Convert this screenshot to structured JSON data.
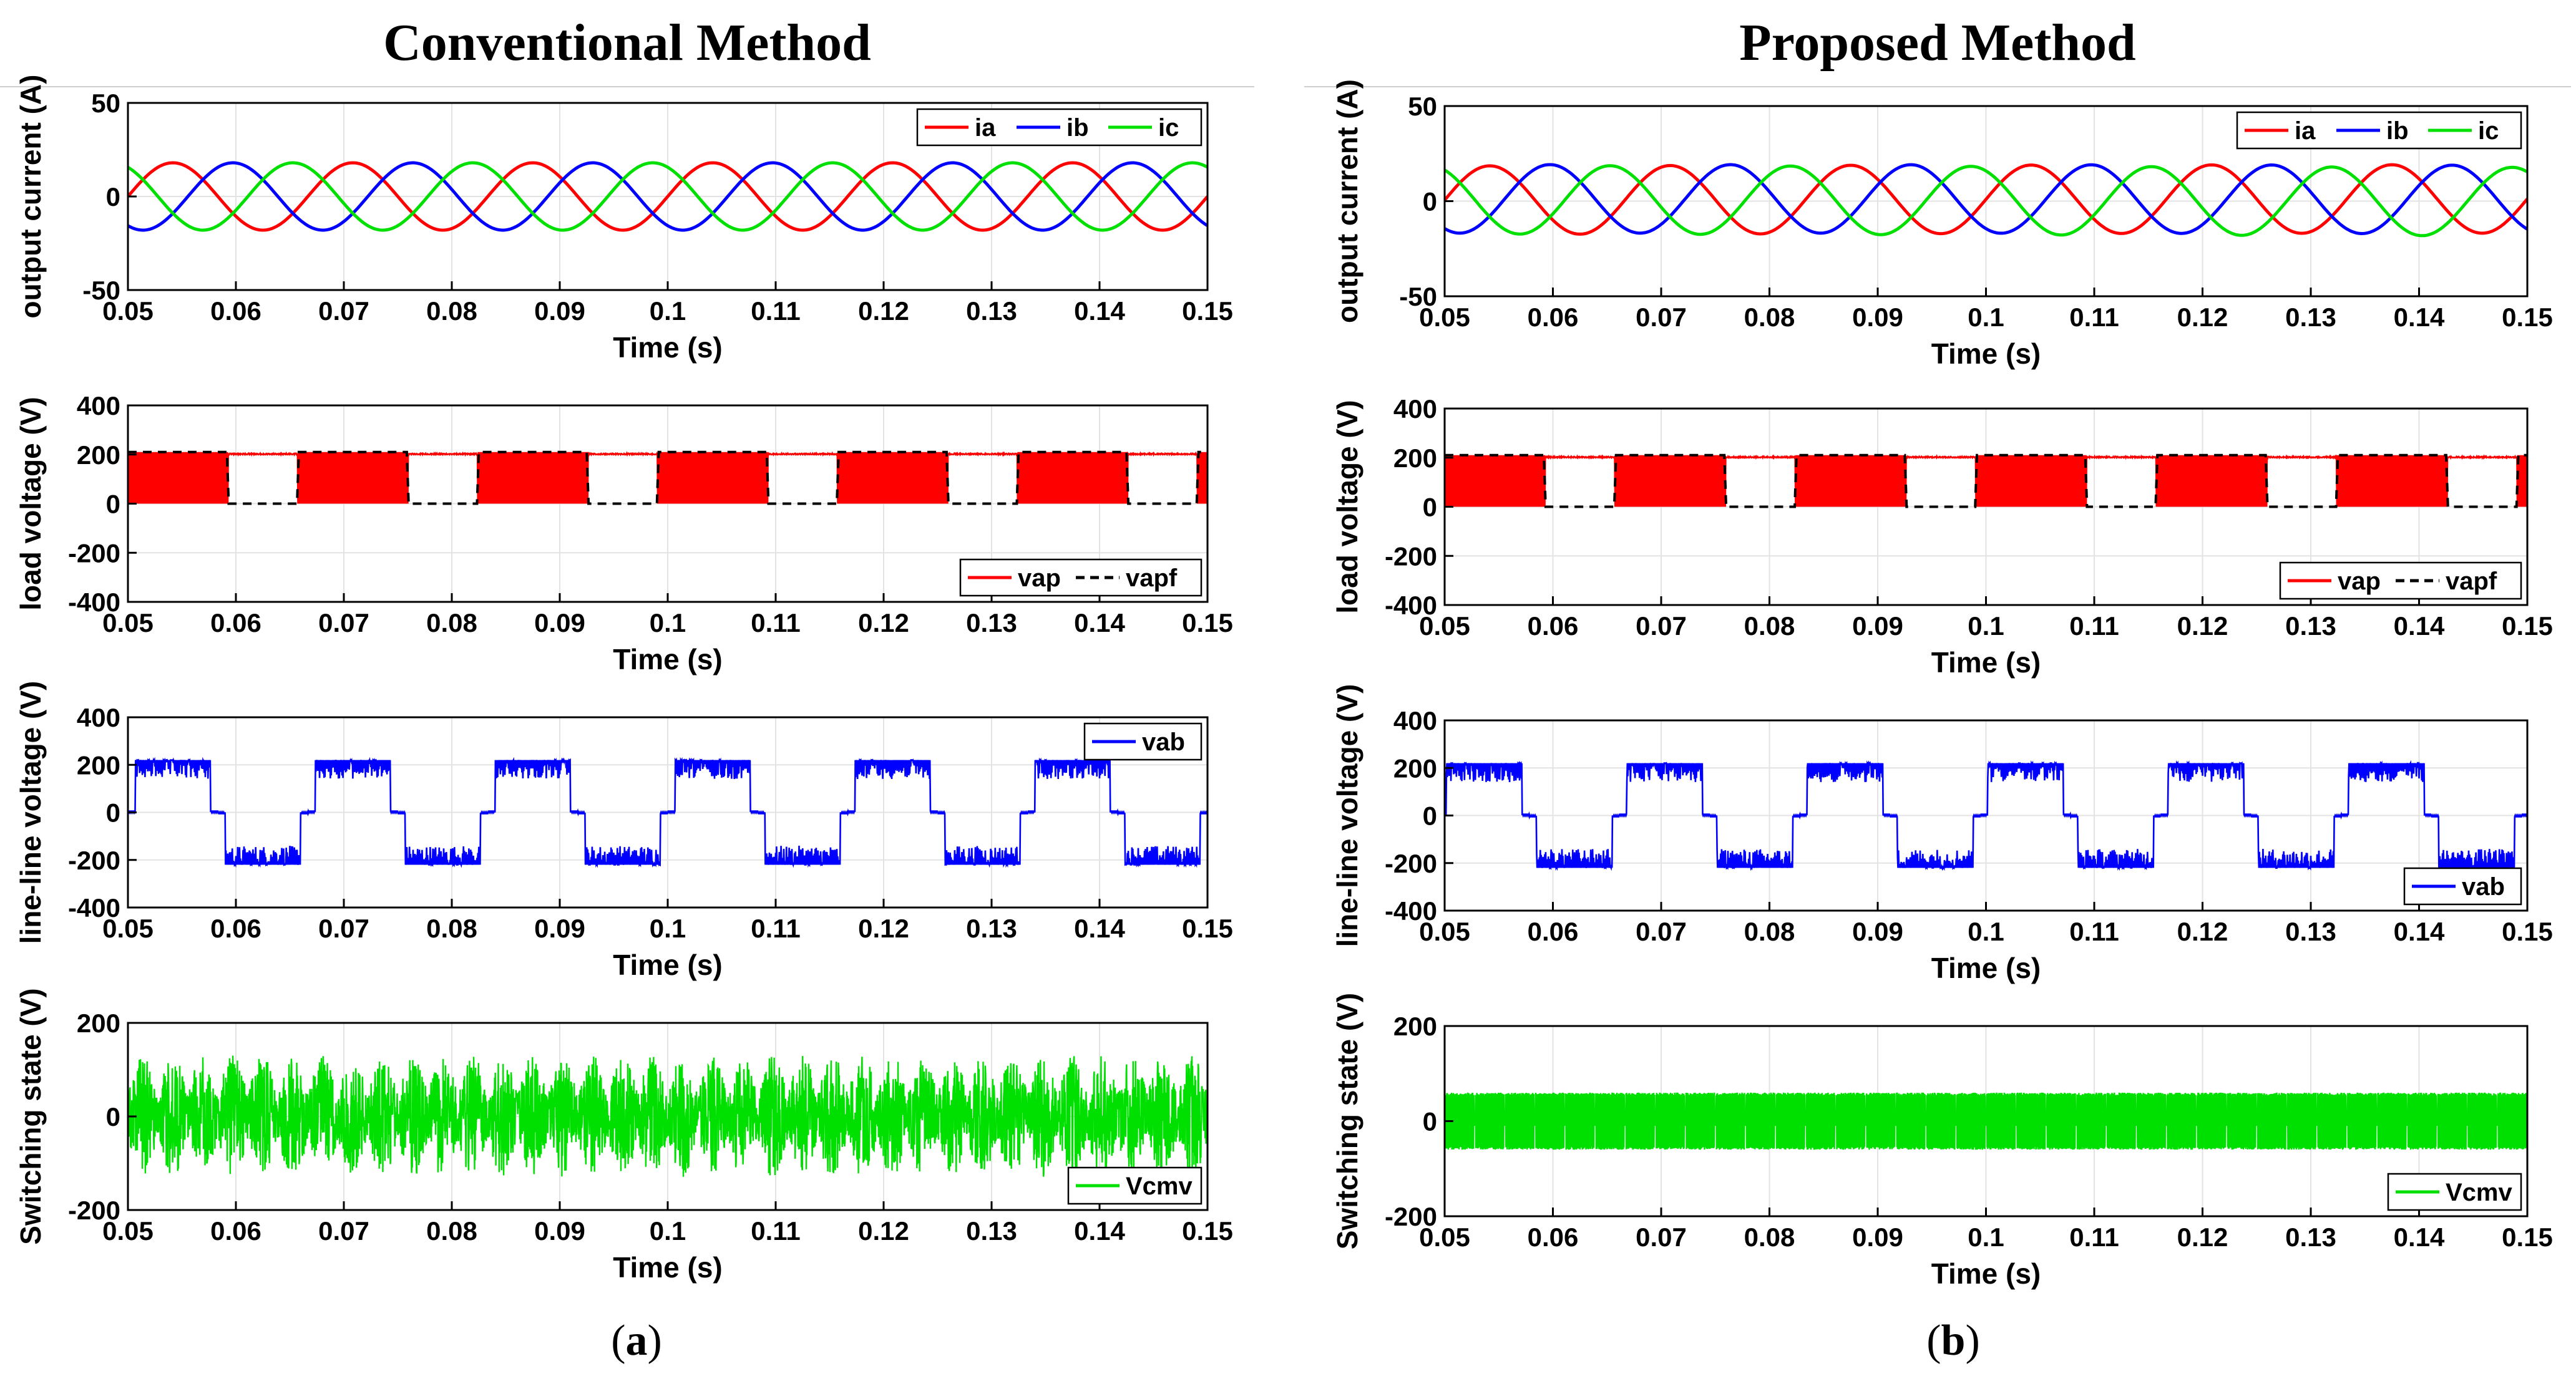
{
  "columns": [
    {
      "title": "Conventional Method",
      "caption_letter": "a"
    },
    {
      "title": "Proposed Method",
      "caption_letter": "b"
    }
  ],
  "chart_data": [
    {
      "id": "a1",
      "panel": "a",
      "type": "line",
      "ylabel": "output current (A)",
      "xlabel": "Time (s)",
      "xlim": [
        0.05,
        0.15
      ],
      "ylim": [
        -50,
        50
      ],
      "yticks": [
        "50",
        "0",
        "-50"
      ],
      "xticks": [
        "0.05",
        "0.06",
        "0.07",
        "0.08",
        "0.09",
        "0.1",
        "0.11",
        "0.12",
        "0.13",
        "0.14",
        "0.15"
      ],
      "legend": "top-right",
      "amplitude": 18,
      "frequency_hz": 60,
      "series": [
        {
          "name": "ia",
          "color": "#ff0000",
          "phase_deg": 0
        },
        {
          "name": "ib",
          "color": "#0000ff",
          "phase_deg": -120
        },
        {
          "name": "ic",
          "color": "#00e000",
          "phase_deg": 120
        }
      ]
    },
    {
      "id": "a2",
      "panel": "a",
      "type": "line",
      "ylabel": "load voltage (V)",
      "xlabel": "Time (s)",
      "xlim": [
        0.05,
        0.15
      ],
      "ylim": [
        -400,
        400
      ],
      "yticks": [
        "400",
        "200",
        "0",
        "-200",
        "-400"
      ],
      "xticks": [
        "0.05",
        "0.06",
        "0.07",
        "0.08",
        "0.09",
        "0.1",
        "0.11",
        "0.12",
        "0.13",
        "0.14",
        "0.15"
      ],
      "legend": "bottom-right",
      "dc_level": 200,
      "series": [
        {
          "name": "vap",
          "color": "#ff0000",
          "style": "pwm"
        },
        {
          "name": "vapf",
          "color": "#000000",
          "style": "dashed"
        }
      ]
    },
    {
      "id": "a3",
      "panel": "a",
      "type": "line",
      "ylabel": "line-line voltage (V)",
      "xlabel": "Time (s)",
      "xlim": [
        0.05,
        0.15
      ],
      "ylim": [
        -400,
        400
      ],
      "yticks": [
        "400",
        "200",
        "0",
        "-200",
        "-400"
      ],
      "xticks": [
        "0.05",
        "0.06",
        "0.07",
        "0.08",
        "0.09",
        "0.1",
        "0.11",
        "0.12",
        "0.13",
        "0.14",
        "0.15"
      ],
      "legend": "top-right",
      "level": 220,
      "series": [
        {
          "name": "vab",
          "color": "#0000ff",
          "style": "pwm-bipolar"
        }
      ]
    },
    {
      "id": "a4",
      "panel": "a",
      "type": "line",
      "ylabel": "Switching state (V)",
      "xlabel": "Time (s)",
      "xlim": [
        0.05,
        0.15
      ],
      "ylim": [
        -200,
        200
      ],
      "yticks": [
        "200",
        "0",
        "-200"
      ],
      "xticks": [
        "0.05",
        "0.06",
        "0.07",
        "0.08",
        "0.09",
        "0.1",
        "0.11",
        "0.12",
        "0.13",
        "0.14",
        "0.15"
      ],
      "legend": "bottom-right",
      "peak": 130,
      "series": [
        {
          "name": "Vcmv",
          "color": "#00e000",
          "style": "noise"
        }
      ]
    },
    {
      "id": "b1",
      "panel": "b",
      "type": "line",
      "ylabel": "output current (A)",
      "xlabel": "Time (s)",
      "xlim": [
        0.05,
        0.15
      ],
      "ylim": [
        -50,
        50
      ],
      "yticks": [
        "50",
        "0",
        "-50"
      ],
      "xticks": [
        "0.05",
        "0.06",
        "0.07",
        "0.08",
        "0.09",
        "0.1",
        "0.11",
        "0.12",
        "0.13",
        "0.14",
        "0.15"
      ],
      "legend": "top-right",
      "amplitude": 18,
      "frequency_hz": 60,
      "series": [
        {
          "name": "ia",
          "color": "#ff0000",
          "phase_deg": 0
        },
        {
          "name": "ib",
          "color": "#0000ff",
          "phase_deg": -120
        },
        {
          "name": "ic",
          "color": "#00e000",
          "phase_deg": 120
        }
      ]
    },
    {
      "id": "b2",
      "panel": "b",
      "type": "line",
      "ylabel": "load voltage (V)",
      "xlabel": "Time (s)",
      "xlim": [
        0.05,
        0.15
      ],
      "ylim": [
        -400,
        400
      ],
      "yticks": [
        "400",
        "200",
        "0",
        "-200",
        "-400"
      ],
      "xticks": [
        "0.05",
        "0.06",
        "0.07",
        "0.08",
        "0.09",
        "0.1",
        "0.11",
        "0.12",
        "0.13",
        "0.14",
        "0.15"
      ],
      "legend": "bottom-right",
      "dc_level": 200,
      "series": [
        {
          "name": "vap",
          "color": "#ff0000",
          "style": "pwm"
        },
        {
          "name": "vapf",
          "color": "#000000",
          "style": "dashed"
        }
      ]
    },
    {
      "id": "b3",
      "panel": "b",
      "type": "line",
      "ylabel": "line-line voltage (V)",
      "xlabel": "Time (s)",
      "xlim": [
        0.05,
        0.15
      ],
      "ylim": [
        -400,
        400
      ],
      "yticks": [
        "400",
        "200",
        "0",
        "-200",
        "-400"
      ],
      "xticks": [
        "0.05",
        "0.06",
        "0.07",
        "0.08",
        "0.09",
        "0.1",
        "0.11",
        "0.12",
        "0.13",
        "0.14",
        "0.15"
      ],
      "legend": "bottom-right",
      "level": 220,
      "series": [
        {
          "name": "vab",
          "color": "#0000ff",
          "style": "pwm-bipolar"
        }
      ]
    },
    {
      "id": "b4",
      "panel": "b",
      "type": "line",
      "ylabel": "Switching state (V)",
      "xlabel": "Time (s)",
      "xlim": [
        0.05,
        0.15
      ],
      "ylim": [
        -200,
        200
      ],
      "yticks": [
        "200",
        "0",
        "-200"
      ],
      "xticks": [
        "0.05",
        "0.06",
        "0.07",
        "0.08",
        "0.09",
        "0.1",
        "0.11",
        "0.12",
        "0.13",
        "0.14",
        "0.15"
      ],
      "legend": "bottom-right",
      "peak": 60,
      "series": [
        {
          "name": "Vcmv",
          "color": "#00e000",
          "style": "band"
        }
      ]
    }
  ]
}
